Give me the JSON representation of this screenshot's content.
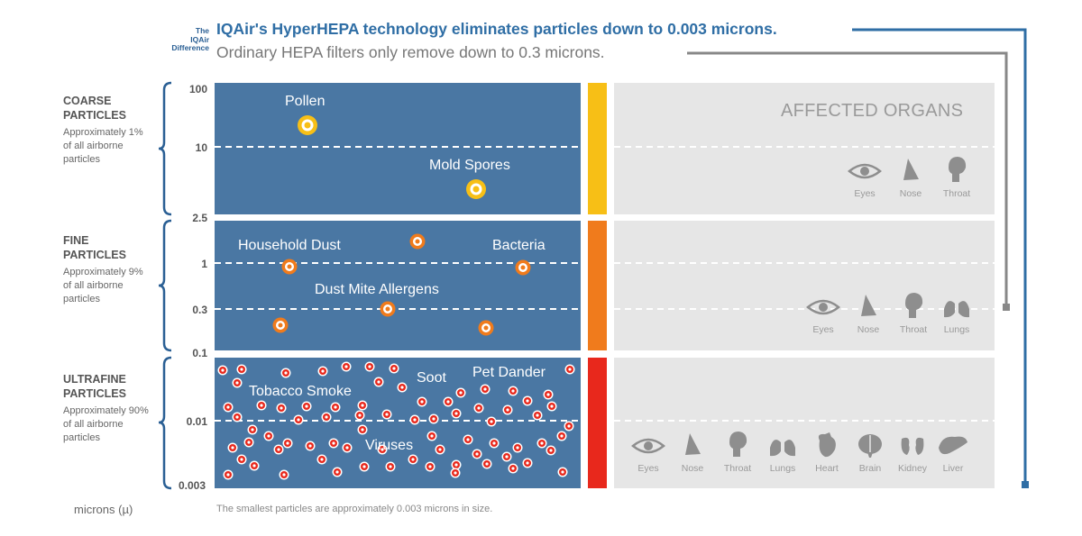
{
  "header": {
    "difference_label": "The IQAir Difference",
    "hyperhepa_line": "IQAir's HyperHEPA technology eliminates particles down to 0.003 microns.",
    "ordinary_line": "Ordinary HEPA filters only remove down to 0.3 microns."
  },
  "colors": {
    "panel_blue": "#4a77a3",
    "organ_gray": "#e6e6e6",
    "coarse_bar": "#f7bf16",
    "fine_bar": "#f07b1c",
    "ultrafine_bar": "#e8281c",
    "hyper_line": "#2f6ea5",
    "ordinary_line": "#888888"
  },
  "categories": [
    {
      "title": "COARSE PARTICLES",
      "desc": "Approximately 1% of all airborne particles"
    },
    {
      "title": "FINE PARTICLES",
      "desc": "Approximately 9% of all airborne particles"
    },
    {
      "title": "ULTRAFINE PARTICLES",
      "desc": "Approximately 90% of all airborne particles"
    }
  ],
  "ticks": [
    "100",
    "10",
    "2.5",
    "1",
    "0.3",
    "0.1",
    "0.01",
    "0.003"
  ],
  "particles": {
    "pollen": "Pollen",
    "mold": "Mold Spores",
    "household": "Household Dust",
    "bacteria": "Bacteria",
    "dustmite": "Dust Mite Allergens",
    "tobacco": "Tobacco Smoke",
    "soot": "Soot",
    "petdander": "Pet Dander",
    "viruses": "Viruses"
  },
  "affected_organs_title": "AFFECTED ORGANS",
  "organs": {
    "coarse": [
      "Eyes",
      "Nose",
      "Throat"
    ],
    "fine": [
      "Eyes",
      "Nose",
      "Throat",
      "Lungs"
    ],
    "ultrafine": [
      "Eyes",
      "Nose",
      "Throat",
      "Lungs",
      "Heart",
      "Brain",
      "Kidney",
      "Liver"
    ]
  },
  "unit_label": "microns (µ)",
  "footnote": "The smallest particles are approximately 0.003 microns in size."
}
